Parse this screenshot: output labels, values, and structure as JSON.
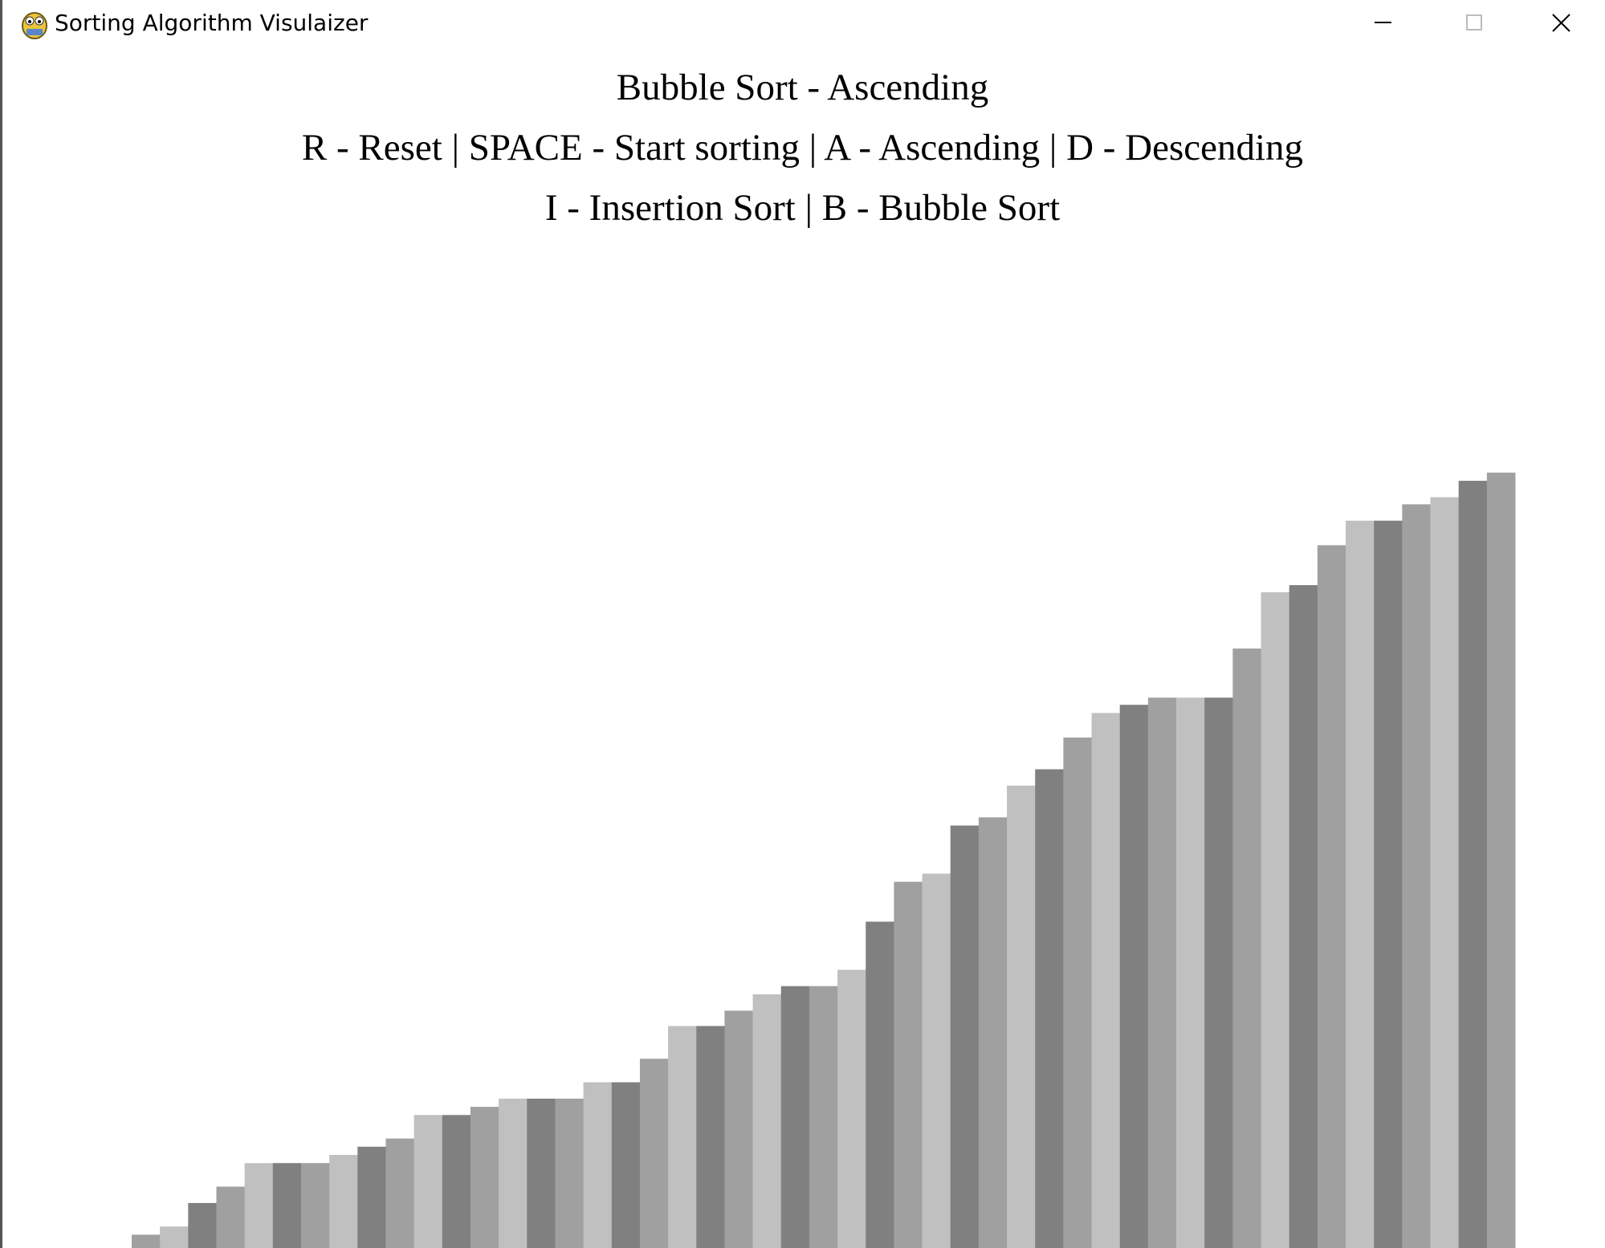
{
  "window": {
    "title": "Sorting Algorithm Visulaizer"
  },
  "header": {
    "title": "Bubble Sort - Ascending",
    "controls": [
      "R - Reset | SPACE - Start sorting | A - Ascending | D - Descending",
      "I - Insertion Sort | B - Bubble Sort"
    ]
  },
  "bars": {
    "values": [
      13,
      21,
      44,
      60,
      83,
      83,
      83,
      91,
      99,
      107,
      130,
      130,
      138,
      146,
      146,
      146,
      162,
      162,
      185,
      217,
      217,
      232,
      248,
      256,
      256,
      272,
      319,
      358,
      366,
      413,
      421,
      452,
      468,
      499,
      523,
      531,
      538,
      538,
      538,
      586,
      641,
      648,
      687,
      711,
      711,
      727,
      734,
      750,
      758
    ],
    "colors": [
      "#a0a0a0",
      "#c0c0c0",
      "#808080"
    ]
  }
}
